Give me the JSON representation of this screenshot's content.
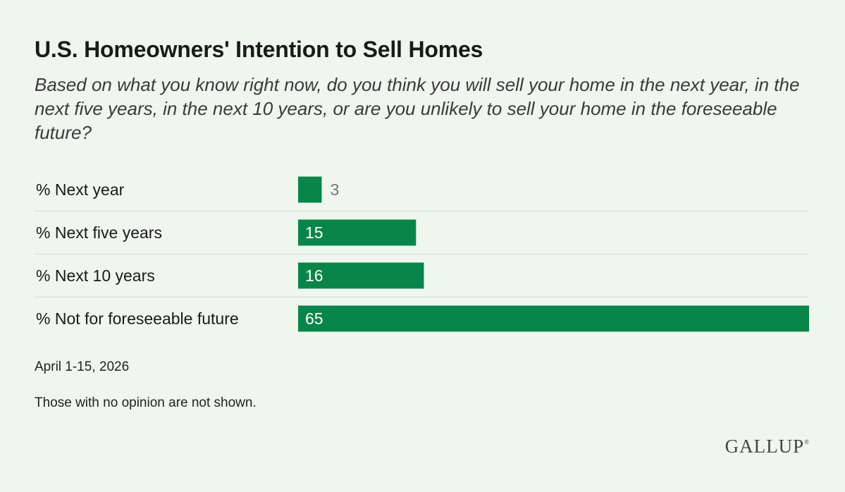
{
  "header": {
    "title": "U.S. Homeowners' Intention to Sell Homes",
    "subtitle": "Based on what you know right now, do you think you will sell your home in the next year, in the next five years, in the next 10 years, or are you unlikely to sell your home in the foreseeable future?"
  },
  "chart_data": {
    "type": "bar",
    "orientation": "horizontal",
    "title": "U.S. Homeowners' Intention to Sell Homes",
    "categories": [
      "% Next year",
      "% Next five years",
      "% Next 10 years",
      "% Not for foreseeable future"
    ],
    "values": [
      3,
      15,
      16,
      65
    ],
    "data_labels": [
      "3",
      "15",
      "16",
      "65"
    ],
    "xlim": [
      0,
      65
    ],
    "grid": false,
    "bar_color": "#0a8549",
    "label_color_inside": "#ffffff",
    "label_color_outside": "#777777",
    "divider_color": "#d5dcd5"
  },
  "footer": {
    "date": "April 1-15, 2026",
    "note": "Those with no opinion are not shown.",
    "logo_text": "GALLUP",
    "logo_mark": "®"
  }
}
